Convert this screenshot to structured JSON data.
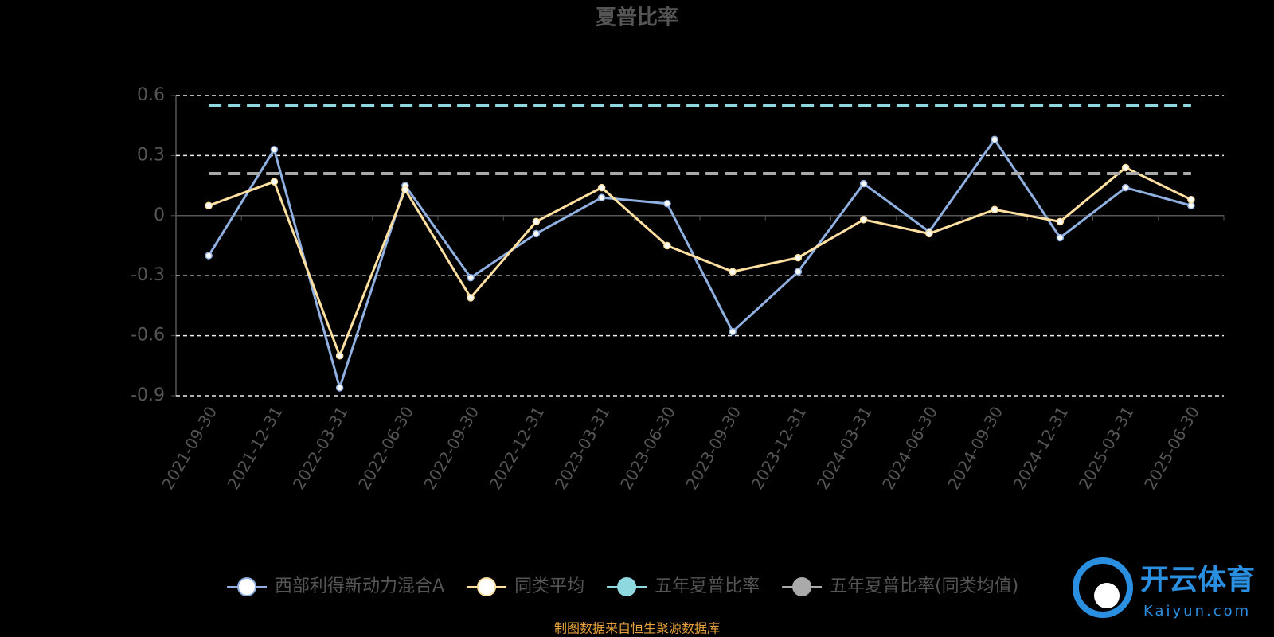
{
  "chart_data": {
    "type": "line",
    "title": "夏普比率",
    "categories": [
      "2021-09-30",
      "2021-12-31",
      "2022-03-31",
      "2022-06-30",
      "2022-09-30",
      "2022-12-31",
      "2023-03-31",
      "2023-06-30",
      "2023-09-30",
      "2023-12-31",
      "2024-03-31",
      "2024-06-30",
      "2024-09-30",
      "2024-12-31",
      "2025-03-31",
      "2025-06-30"
    ],
    "series": [
      {
        "name": "西部利得新动力混合A",
        "color": "#8fb0e0",
        "values": [
          -0.2,
          0.33,
          -0.86,
          0.15,
          -0.31,
          -0.09,
          0.09,
          0.06,
          -0.58,
          -0.28,
          0.16,
          -0.08,
          0.38,
          -0.11,
          0.14,
          0.05
        ]
      },
      {
        "name": "同类平均",
        "color": "#ffe0a0",
        "values": [
          0.05,
          0.17,
          -0.7,
          0.13,
          -0.41,
          -0.03,
          0.14,
          -0.15,
          -0.28,
          -0.21,
          -0.02,
          -0.09,
          0.03,
          -0.03,
          0.24,
          0.08
        ]
      },
      {
        "name": "五年夏普比率",
        "color": "#8fd8e0",
        "value": 0.55
      },
      {
        "name": "五年夏普比率(同类均值)",
        "color": "#aaaaaa",
        "value": 0.21
      }
    ],
    "ylim": [
      -0.9,
      0.6
    ],
    "yticks": [
      -0.9,
      -0.6,
      -0.3,
      0,
      0.3,
      0.6
    ],
    "grid": true,
    "source": "制图数据来自恒生聚源数据库",
    "watermark": {
      "brand": "开云体育",
      "site": "Kaiyun.com"
    }
  }
}
